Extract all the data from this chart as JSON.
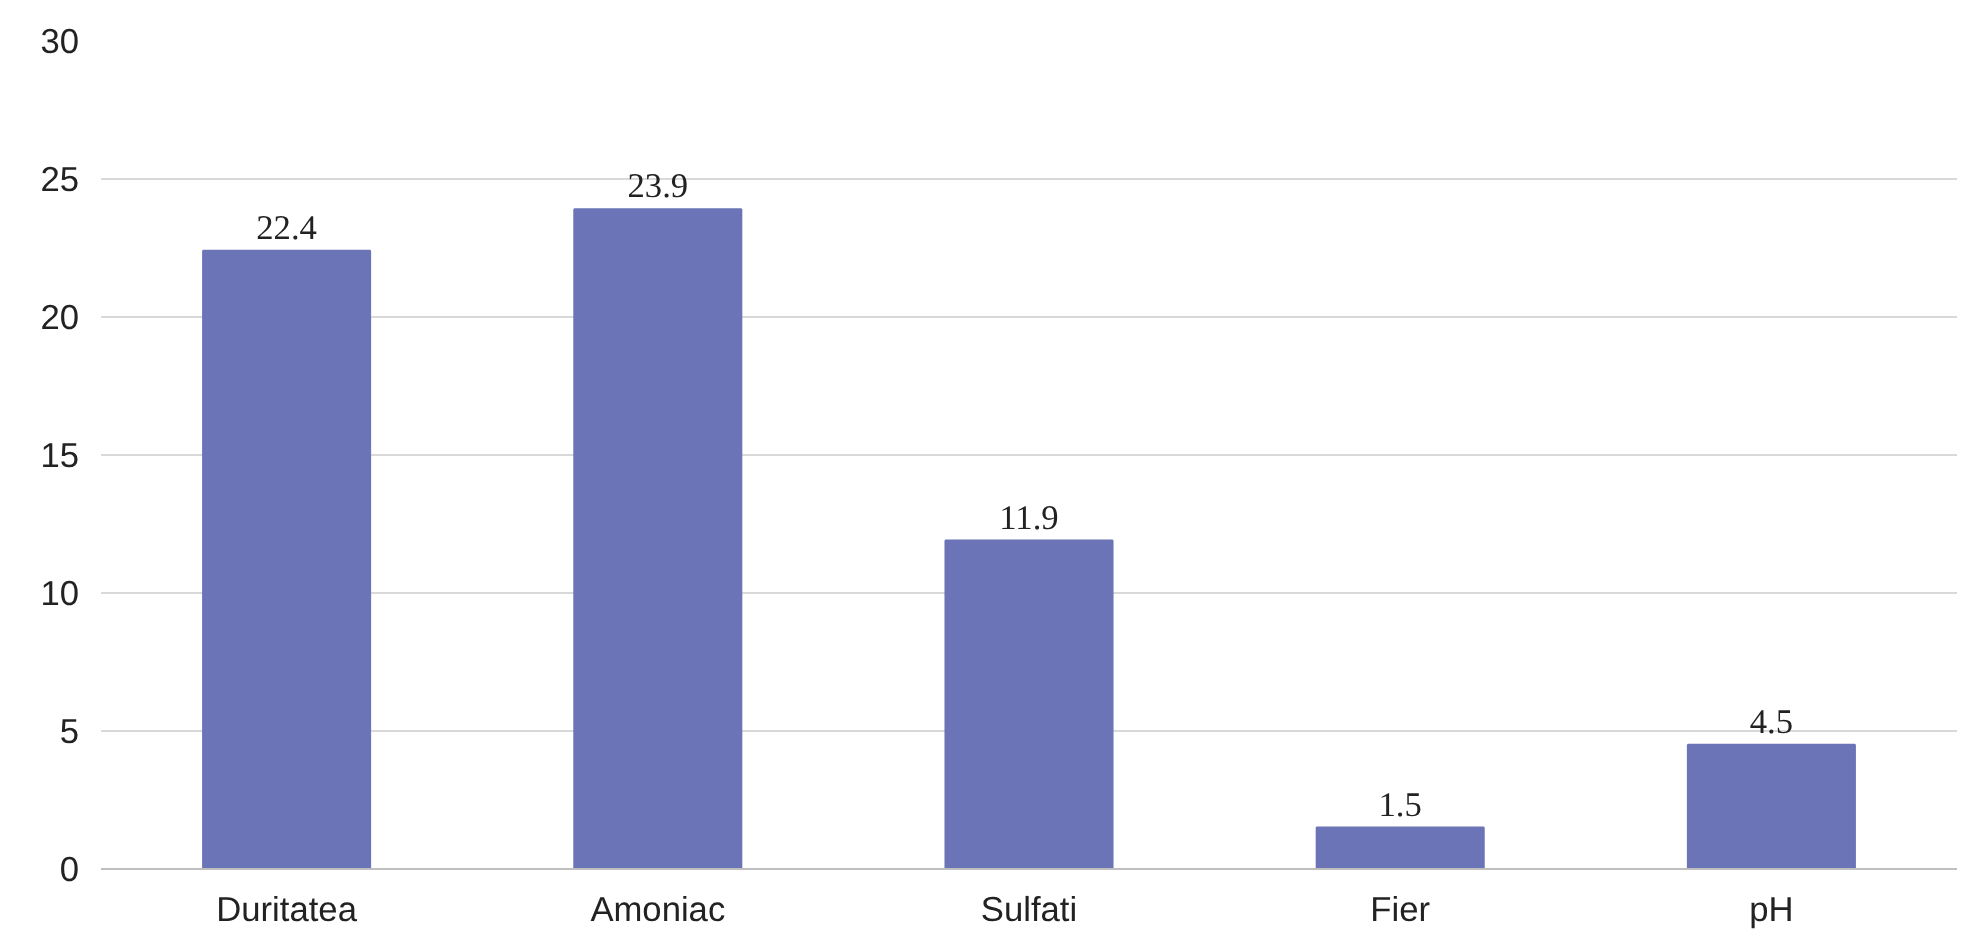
{
  "chart_data": {
    "type": "bar",
    "categories": [
      "Duritatea",
      "Amoniac",
      "Sulfati",
      "Fier",
      "pH"
    ],
    "values": [
      22.4,
      23.9,
      11.9,
      1.5,
      4.5
    ],
    "color": "#6b74b6",
    "ylim": [
      0,
      30
    ],
    "yticks": [
      0,
      5,
      10,
      15,
      20,
      25,
      30
    ],
    "grid": "y",
    "data_labels": true
  }
}
